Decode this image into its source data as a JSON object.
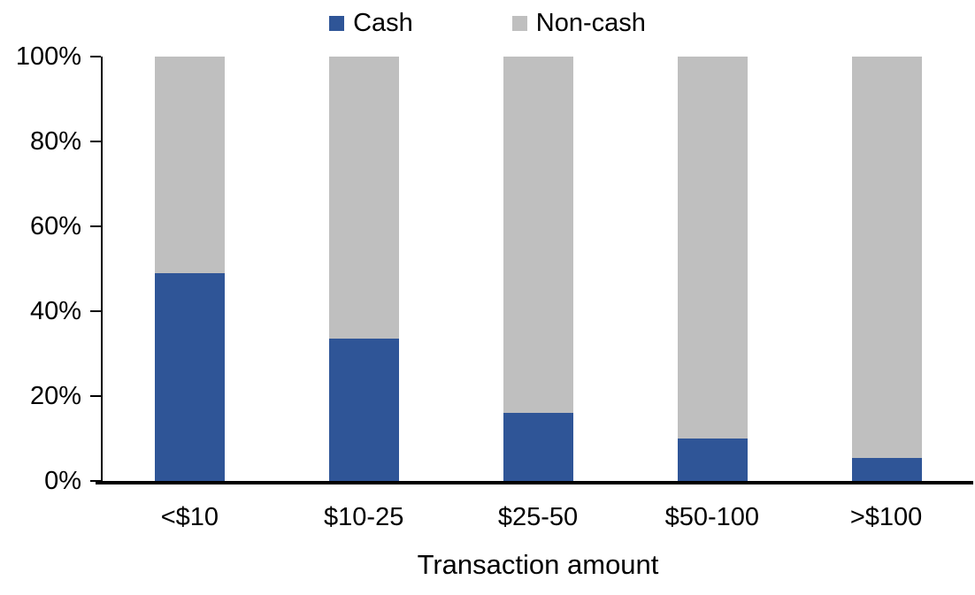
{
  "chart_data": {
    "type": "bar",
    "stacked": true,
    "stack_unit": "percent",
    "title": "",
    "xlabel": "Transaction amount",
    "ylabel": "",
    "categories": [
      "<$10",
      "$10-25",
      "$25-50",
      "$50-100",
      ">$100"
    ],
    "series": [
      {
        "name": "Cash",
        "color": "#2F5597",
        "values": [
          49,
          33.5,
          16,
          10,
          5.5
        ]
      },
      {
        "name": "Non-cash",
        "color": "#BFBFBF",
        "values": [
          51,
          66.5,
          84,
          90,
          94.5
        ]
      }
    ],
    "ylim": [
      0,
      100
    ],
    "yticks": [
      "0%",
      "20%",
      "40%",
      "60%",
      "80%",
      "100%"
    ],
    "grid": false,
    "legend_position": "top-center",
    "axis_color": "#000000",
    "background_color": "#FFFFFF"
  }
}
